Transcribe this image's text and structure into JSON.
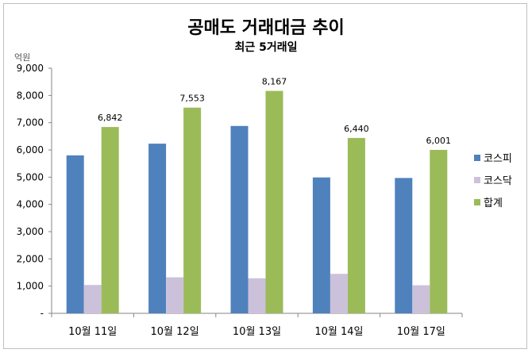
{
  "chart_data": {
    "type": "bar",
    "title": "공매도 거래대금 추이",
    "subtitle": "최근 5거래일",
    "ylabel": "억원",
    "xlabel": "",
    "ylim": [
      0,
      9000
    ],
    "yticks": [
      0,
      1000,
      2000,
      3000,
      4000,
      5000,
      6000,
      7000,
      8000,
      9000
    ],
    "ytick_labels": [
      "-",
      "1,000",
      "2,000",
      "3,000",
      "4,000",
      "5,000",
      "6,000",
      "7,000",
      "8,000",
      "9,000"
    ],
    "categories": [
      "10월 11일",
      "10월 12일",
      "10월 13일",
      "10월 14일",
      "10월 17일"
    ],
    "series": [
      {
        "name": "코스피",
        "color": "#4f81bd",
        "values": [
          5800,
          6230,
          6880,
          4990,
          4970
        ]
      },
      {
        "name": "코스닥",
        "color": "#ccc1da",
        "values": [
          1042,
          1323,
          1287,
          1450,
          1031
        ]
      },
      {
        "name": "합계",
        "color": "#9bbb59",
        "values": [
          6842,
          7553,
          8167,
          6440,
          6001
        ],
        "data_labels": [
          "6,842",
          "7,553",
          "8,167",
          "6,440",
          "6,001"
        ]
      }
    ],
    "legend": "right",
    "grid": false
  }
}
